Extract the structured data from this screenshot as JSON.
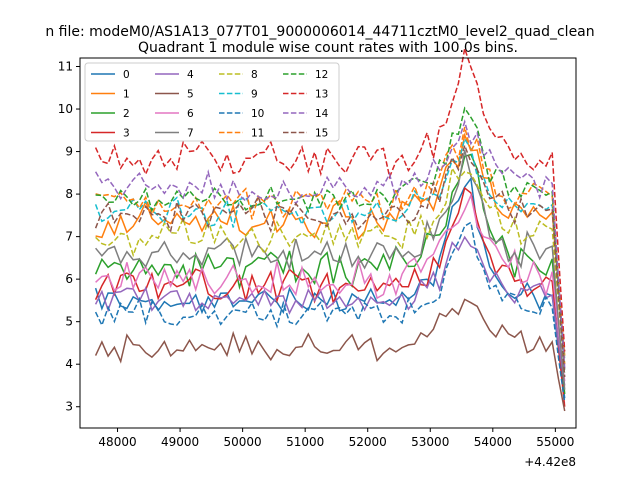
{
  "chart_data": {
    "type": "line",
    "suptitle": "n file: modeM0/AS1A13_077T01_9000006014_44711cztM0_level2_quad_clean",
    "title": "Quadrant 1 module wise count rates with 100.0s bins.",
    "xlabel": "",
    "ylabel": "",
    "x_offset_label": "+4.42e8",
    "xlim": [
      47400,
      55330
    ],
    "ylim": [
      2.5,
      11.2
    ],
    "xticks": [
      48000,
      49000,
      50000,
      51000,
      52000,
      53000,
      54000,
      55000
    ],
    "yticks": [
      3,
      4,
      5,
      6,
      7,
      8,
      9,
      10,
      11
    ],
    "x_start": 47650,
    "x_step": 100,
    "legend_position": "top-left",
    "grid": false,
    "series": [
      {
        "name": "0",
        "color": "#1f77b4",
        "dash": "solid",
        "base": 5.5,
        "noise": 0.22,
        "peak": 2.5,
        "end": 3.2,
        "seed": 1
      },
      {
        "name": "1",
        "color": "#ff7f0e",
        "dash": "solid",
        "base": 7.4,
        "noise": 0.35,
        "peak": 1.5,
        "end": 4.2,
        "seed": 2
      },
      {
        "name": "2",
        "color": "#2ca02c",
        "dash": "solid",
        "base": 6.3,
        "noise": 0.35,
        "peak": 2.4,
        "end": 3.3,
        "seed": 3
      },
      {
        "name": "3",
        "color": "#d62728",
        "dash": "solid",
        "base": 5.8,
        "noise": 0.3,
        "peak": 1.8,
        "end": 3.0,
        "seed": 4
      },
      {
        "name": "4",
        "color": "#9467bd",
        "dash": "solid",
        "base": 5.5,
        "noise": 0.25,
        "peak": 1.2,
        "end": 3.5,
        "seed": 5
      },
      {
        "name": "5",
        "color": "#8c564b",
        "dash": "solid",
        "base": 4.4,
        "noise": 0.25,
        "peak": 0.8,
        "end": 2.9,
        "seed": 6
      },
      {
        "name": "6",
        "color": "#e377c2",
        "dash": "solid",
        "base": 6.0,
        "noise": 0.35,
        "peak": 1.6,
        "end": 3.6,
        "seed": 7
      },
      {
        "name": "7",
        "color": "#7f7f7f",
        "dash": "solid",
        "base": 6.6,
        "noise": 0.35,
        "peak": 2.0,
        "end": 3.4,
        "seed": 8
      },
      {
        "name": "8",
        "color": "#bcbd22",
        "dash": "dashed",
        "base": 7.0,
        "noise": 0.35,
        "peak": 1.4,
        "end": 3.9,
        "seed": 9
      },
      {
        "name": "9",
        "color": "#17becf",
        "dash": "dashed",
        "base": 7.6,
        "noise": 0.3,
        "peak": 1.2,
        "end": 4.1,
        "seed": 10
      },
      {
        "name": "10",
        "color": "#1f77b4",
        "dash": "dashed",
        "base": 5.2,
        "noise": 0.25,
        "peak": 1.8,
        "end": 3.1,
        "seed": 11
      },
      {
        "name": "11",
        "color": "#ff7f0e",
        "dash": "dashed",
        "base": 7.8,
        "noise": 0.3,
        "peak": 1.2,
        "end": 4.0,
        "seed": 12
      },
      {
        "name": "12",
        "color": "#2ca02c",
        "dash": "dashed",
        "base": 7.9,
        "noise": 0.3,
        "peak": 1.8,
        "end": 3.8,
        "seed": 13
      },
      {
        "name": "13",
        "color": "#d62728",
        "dash": "dashed",
        "base": 8.8,
        "noise": 0.35,
        "peak": 1.9,
        "end": 4.3,
        "seed": 14
      },
      {
        "name": "14",
        "color": "#9467bd",
        "dash": "dashed",
        "base": 8.1,
        "noise": 0.3,
        "peak": 1.2,
        "end": 3.9,
        "seed": 15
      },
      {
        "name": "15",
        "color": "#8c564b",
        "dash": "dashed",
        "base": 7.5,
        "noise": 0.3,
        "peak": 1.2,
        "end": 3.7,
        "seed": 16
      }
    ]
  }
}
